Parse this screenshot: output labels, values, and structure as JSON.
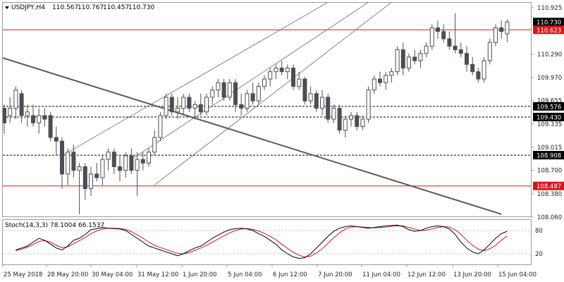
{
  "header": {
    "symbol": "USDJPY,H4",
    "open": "110.567",
    "high": "110.767",
    "low": "110.457",
    "close": "110.730",
    "chevron_icon": "triangle-down-icon"
  },
  "colors": {
    "background": "#ffffff",
    "frame": "#9a9a9a",
    "candle_body": "#4a4f55",
    "candle_wick": "#4a4f55",
    "resistance_red": "#d9161c",
    "stoch_main": "#000000",
    "stoch_signal": "#d9161c",
    "trendline": "#5a5a5a",
    "channel": "#6a6a6a",
    "dashed": "#000000",
    "price_label_black": "#000000",
    "price_label_red": "#d9161c"
  },
  "price_axis": {
    "ticks": [
      "110.925",
      "110.290",
      "109.970",
      "109.655",
      "109.335",
      "109.015",
      "108.700",
      "108.380",
      "108.060"
    ]
  },
  "time_axis": {
    "labels": [
      "25 May 2018",
      "28 May 20:00",
      "30 May 04:00",
      "31 May 12:00",
      "1 Jun 20:00",
      "5 Jun 04:00",
      "6 Jun 12:00",
      "7 Jun 20:00",
      "11 Jun 04:00",
      "12 Jun 12:00",
      "13 Jun 20:00",
      "15 Jun 04:00"
    ]
  },
  "level_labels": [
    {
      "text": "110.730",
      "style": "black"
    },
    {
      "text": "110.623",
      "style": "red"
    },
    {
      "text": "109.576",
      "style": "black"
    },
    {
      "text": "109.430",
      "style": "black"
    },
    {
      "text": "108.908",
      "style": "black"
    },
    {
      "text": "108.487",
      "style": "red"
    }
  ],
  "stoch": {
    "title": "Stoch(14,3,3) 78.1004 66.1537",
    "levels": [
      "80",
      "20"
    ]
  },
  "chart_data": {
    "type": "candlestick",
    "symbol": "USDJPY",
    "timeframe": "H4",
    "ylim": [
      108.0,
      111.0
    ],
    "horizontal_levels": [
      {
        "price": 110.623,
        "style": "solid",
        "color": "red"
      },
      {
        "price": 109.576,
        "style": "dashed",
        "color": "black"
      },
      {
        "price": 109.43,
        "style": "dashed",
        "color": "black"
      },
      {
        "price": 108.908,
        "style": "dashed",
        "color": "black"
      },
      {
        "price": 108.487,
        "style": "solid",
        "color": "red"
      }
    ],
    "candles": [
      {
        "o": 109.55,
        "h": 109.6,
        "l": 109.2,
        "c": 109.35
      },
      {
        "o": 109.45,
        "h": 109.7,
        "l": 109.35,
        "c": 109.55
      },
      {
        "o": 109.55,
        "h": 109.85,
        "l": 109.4,
        "c": 109.8
      },
      {
        "o": 109.75,
        "h": 109.8,
        "l": 109.35,
        "c": 109.45
      },
      {
        "o": 109.45,
        "h": 109.6,
        "l": 109.3,
        "c": 109.5
      },
      {
        "o": 109.45,
        "h": 109.6,
        "l": 109.3,
        "c": 109.35
      },
      {
        "o": 109.35,
        "h": 109.55,
        "l": 109.2,
        "c": 109.45
      },
      {
        "o": 109.45,
        "h": 109.55,
        "l": 109.3,
        "c": 109.4
      },
      {
        "o": 109.45,
        "h": 109.5,
        "l": 109.1,
        "c": 109.15
      },
      {
        "o": 109.15,
        "h": 109.3,
        "l": 108.9,
        "c": 109.1
      },
      {
        "o": 109.1,
        "h": 109.15,
        "l": 108.45,
        "c": 108.65
      },
      {
        "o": 108.65,
        "h": 109.0,
        "l": 108.5,
        "c": 108.95
      },
      {
        "o": 108.95,
        "h": 109.05,
        "l": 108.6,
        "c": 108.7
      },
      {
        "o": 108.7,
        "h": 108.8,
        "l": 108.1,
        "c": 108.75
      },
      {
        "o": 108.75,
        "h": 108.8,
        "l": 108.3,
        "c": 108.45
      },
      {
        "o": 108.45,
        "h": 108.75,
        "l": 108.35,
        "c": 108.65
      },
      {
        "o": 108.65,
        "h": 108.8,
        "l": 108.55,
        "c": 108.6
      },
      {
        "o": 108.6,
        "h": 108.9,
        "l": 108.5,
        "c": 108.85
      },
      {
        "o": 108.85,
        "h": 109.0,
        "l": 108.7,
        "c": 108.95
      },
      {
        "o": 108.95,
        "h": 109.0,
        "l": 108.65,
        "c": 108.75
      },
      {
        "o": 108.75,
        "h": 108.9,
        "l": 108.55,
        "c": 108.7
      },
      {
        "o": 108.7,
        "h": 108.95,
        "l": 108.6,
        "c": 108.9
      },
      {
        "o": 108.9,
        "h": 109.0,
        "l": 108.65,
        "c": 108.7
      },
      {
        "o": 108.7,
        "h": 108.95,
        "l": 108.35,
        "c": 108.85
      },
      {
        "o": 108.85,
        "h": 108.95,
        "l": 108.7,
        "c": 108.8
      },
      {
        "o": 108.8,
        "h": 109.0,
        "l": 108.75,
        "c": 108.95
      },
      {
        "o": 108.95,
        "h": 109.25,
        "l": 108.9,
        "c": 109.15
      },
      {
        "o": 109.15,
        "h": 109.5,
        "l": 109.1,
        "c": 109.45
      },
      {
        "o": 109.45,
        "h": 109.75,
        "l": 109.4,
        "c": 109.7
      },
      {
        "o": 109.7,
        "h": 109.75,
        "l": 109.45,
        "c": 109.5
      },
      {
        "o": 109.5,
        "h": 109.7,
        "l": 109.4,
        "c": 109.55
      },
      {
        "o": 109.55,
        "h": 109.75,
        "l": 109.45,
        "c": 109.7
      },
      {
        "o": 109.7,
        "h": 109.75,
        "l": 109.5,
        "c": 109.55
      },
      {
        "o": 109.55,
        "h": 109.65,
        "l": 109.4,
        "c": 109.6
      },
      {
        "o": 109.6,
        "h": 109.75,
        "l": 109.45,
        "c": 109.5
      },
      {
        "o": 109.5,
        "h": 109.75,
        "l": 109.45,
        "c": 109.7
      },
      {
        "o": 109.7,
        "h": 109.85,
        "l": 109.6,
        "c": 109.8
      },
      {
        "o": 109.8,
        "h": 109.95,
        "l": 109.7,
        "c": 109.9
      },
      {
        "o": 109.9,
        "h": 109.95,
        "l": 109.65,
        "c": 109.7
      },
      {
        "o": 109.7,
        "h": 109.95,
        "l": 109.65,
        "c": 109.9
      },
      {
        "o": 109.9,
        "h": 109.95,
        "l": 109.5,
        "c": 109.6
      },
      {
        "o": 109.6,
        "h": 109.75,
        "l": 109.45,
        "c": 109.55
      },
      {
        "o": 109.55,
        "h": 109.8,
        "l": 109.5,
        "c": 109.75
      },
      {
        "o": 109.75,
        "h": 109.9,
        "l": 109.6,
        "c": 109.65
      },
      {
        "o": 109.65,
        "h": 109.9,
        "l": 109.6,
        "c": 109.85
      },
      {
        "o": 109.85,
        "h": 110.0,
        "l": 109.8,
        "c": 109.95
      },
      {
        "o": 109.95,
        "h": 110.1,
        "l": 109.85,
        "c": 110.05
      },
      {
        "o": 110.05,
        "h": 110.15,
        "l": 109.95,
        "c": 110.1
      },
      {
        "o": 110.1,
        "h": 110.2,
        "l": 110.0,
        "c": 110.05
      },
      {
        "o": 110.05,
        "h": 110.15,
        "l": 109.95,
        "c": 110.1
      },
      {
        "o": 110.1,
        "h": 110.15,
        "l": 109.8,
        "c": 109.85
      },
      {
        "o": 109.85,
        "h": 110.05,
        "l": 109.8,
        "c": 109.95
      },
      {
        "o": 109.95,
        "h": 109.98,
        "l": 109.6,
        "c": 109.65
      },
      {
        "o": 109.65,
        "h": 109.85,
        "l": 109.6,
        "c": 109.75
      },
      {
        "o": 109.75,
        "h": 109.8,
        "l": 109.5,
        "c": 109.55
      },
      {
        "o": 109.55,
        "h": 109.8,
        "l": 109.45,
        "c": 109.7
      },
      {
        "o": 109.7,
        "h": 109.75,
        "l": 109.35,
        "c": 109.4
      },
      {
        "o": 109.4,
        "h": 109.6,
        "l": 109.35,
        "c": 109.55
      },
      {
        "o": 109.55,
        "h": 109.6,
        "l": 109.2,
        "c": 109.25
      },
      {
        "o": 109.25,
        "h": 109.45,
        "l": 109.15,
        "c": 109.4
      },
      {
        "o": 109.4,
        "h": 109.5,
        "l": 109.3,
        "c": 109.45
      },
      {
        "o": 109.45,
        "h": 109.5,
        "l": 109.25,
        "c": 109.3
      },
      {
        "o": 109.3,
        "h": 109.45,
        "l": 109.25,
        "c": 109.4
      },
      {
        "o": 109.4,
        "h": 109.85,
        "l": 109.35,
        "c": 109.8
      },
      {
        "o": 109.8,
        "h": 110.0,
        "l": 109.75,
        "c": 109.95
      },
      {
        "o": 109.95,
        "h": 110.05,
        "l": 109.85,
        "c": 109.9
      },
      {
        "o": 109.9,
        "h": 110.05,
        "l": 109.8,
        "c": 110.0
      },
      {
        "o": 110.0,
        "h": 110.1,
        "l": 109.9,
        "c": 110.05
      },
      {
        "o": 110.05,
        "h": 110.4,
        "l": 110.0,
        "c": 110.35
      },
      {
        "o": 110.35,
        "h": 110.45,
        "l": 110.0,
        "c": 110.1
      },
      {
        "o": 110.1,
        "h": 110.3,
        "l": 110.05,
        "c": 110.25
      },
      {
        "o": 110.25,
        "h": 110.35,
        "l": 110.15,
        "c": 110.2
      },
      {
        "o": 110.2,
        "h": 110.35,
        "l": 110.1,
        "c": 110.3
      },
      {
        "o": 110.3,
        "h": 110.45,
        "l": 110.25,
        "c": 110.4
      },
      {
        "o": 110.4,
        "h": 110.7,
        "l": 110.35,
        "c": 110.65
      },
      {
        "o": 110.65,
        "h": 110.75,
        "l": 110.5,
        "c": 110.6
      },
      {
        "o": 110.6,
        "h": 110.7,
        "l": 110.45,
        "c": 110.5
      },
      {
        "o": 110.5,
        "h": 110.6,
        "l": 110.35,
        "c": 110.4
      },
      {
        "o": 110.4,
        "h": 110.85,
        "l": 110.3,
        "c": 110.35
      },
      {
        "o": 110.35,
        "h": 110.45,
        "l": 110.25,
        "c": 110.3
      },
      {
        "o": 110.3,
        "h": 110.4,
        "l": 110.05,
        "c": 110.15
      },
      {
        "o": 110.15,
        "h": 110.25,
        "l": 110.0,
        "c": 110.05
      },
      {
        "o": 110.05,
        "h": 110.1,
        "l": 109.9,
        "c": 109.95
      },
      {
        "o": 109.95,
        "h": 110.25,
        "l": 109.9,
        "c": 110.2
      },
      {
        "o": 110.2,
        "h": 110.5,
        "l": 110.15,
        "c": 110.45
      },
      {
        "o": 110.45,
        "h": 110.7,
        "l": 110.4,
        "c": 110.65
      },
      {
        "o": 110.65,
        "h": 110.75,
        "l": 110.5,
        "c": 110.6
      },
      {
        "o": 110.567,
        "h": 110.767,
        "l": 110.457,
        "c": 110.73
      }
    ],
    "trendlines": [
      {
        "type": "descending",
        "from": {
          "bar": 0,
          "price": 110.25
        },
        "to": {
          "bar": 86,
          "price": 108.1
        }
      }
    ],
    "channel": [
      {
        "from": {
          "bar": 10,
          "price": 108.9
        },
        "to": {
          "bar": 56,
          "price": 111.0
        }
      },
      {
        "from": {
          "bar": 22,
          "price": 108.85
        },
        "to": {
          "bar": 63,
          "price": 111.0
        }
      },
      {
        "from": {
          "bar": 26,
          "price": 108.5
        },
        "to": {
          "bar": 67,
          "price": 111.0
        }
      }
    ],
    "stochastic": {
      "params": "14,3,3",
      "main_last": 78.1004,
      "signal_last": 66.1537,
      "levels": [
        80,
        20
      ],
      "ylim": [
        0,
        100
      ],
      "main": [
        30,
        35,
        40,
        50,
        60,
        55,
        45,
        35,
        30,
        40,
        55,
        60,
        70,
        82,
        85,
        88,
        86,
        85,
        84,
        80,
        70,
        60,
        50,
        40,
        35,
        30,
        25,
        20,
        15,
        20,
        28,
        35,
        40,
        50,
        60,
        68,
        76,
        82,
        85,
        86,
        84,
        80,
        72,
        65,
        55,
        45,
        30,
        20,
        12,
        8,
        10,
        20,
        35,
        50,
        65,
        78,
        86,
        90,
        92,
        90,
        88,
        86,
        88,
        90,
        92,
        93,
        94,
        90,
        82,
        78,
        80,
        86,
        90,
        92,
        90,
        84,
        70,
        50,
        35,
        25,
        20,
        30,
        45,
        60,
        72,
        78
      ],
      "signal": [
        28,
        32,
        37,
        44,
        52,
        54,
        50,
        42,
        36,
        38,
        46,
        54,
        62,
        72,
        79,
        84,
        86,
        86,
        85,
        83,
        77,
        69,
        60,
        50,
        42,
        36,
        31,
        26,
        21,
        20,
        23,
        29,
        35,
        42,
        50,
        58,
        66,
        74,
        80,
        84,
        85,
        83,
        79,
        73,
        65,
        56,
        45,
        34,
        24,
        16,
        12,
        14,
        22,
        33,
        47,
        61,
        74,
        84,
        89,
        90,
        89,
        88,
        87,
        88,
        89,
        91,
        92,
        92,
        88,
        84,
        80,
        81,
        84,
        88,
        90,
        89,
        82,
        70,
        55,
        42,
        32,
        28,
        33,
        42,
        55,
        66
      ]
    }
  }
}
